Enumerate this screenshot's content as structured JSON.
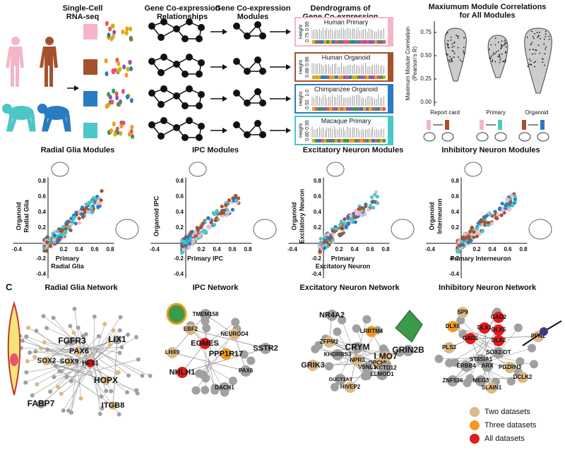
{
  "headers": [
    [
      "Single-Cell",
      "RNA-seq"
    ],
    [
      "Gene Co-expression",
      "Relationships"
    ],
    [
      "Gene Co-expression",
      "Modules"
    ],
    [
      "Dendrograms of",
      "Gene Co-expression"
    ],
    [
      "Maxiumum Module Correlations",
      "for All Modules"
    ]
  ],
  "rows": [
    {
      "label": "Human Primary",
      "color": "#f4b6c6",
      "ticks": [
        "0.75",
        "0.95"
      ]
    },
    {
      "label": "Human Organoid",
      "color": "#a5522c",
      "ticks": [
        "0.88",
        "0.96"
      ]
    },
    {
      "label": "Chimpanzee Organoid",
      "color": "#2a7cc0",
      "ticks": [
        "0.92",
        "1.0"
      ]
    },
    {
      "label": "Macaque Primary",
      "color": "#4cc6c6",
      "ticks": [
        "0.80",
        "0.95"
      ]
    }
  ],
  "height_label": "Height",
  "violin": {
    "ylabel": [
      "Maximum Module Correlation",
      "(Pearson's R)"
    ],
    "yticks": [
      "0.00",
      "0.25",
      "0.50",
      "0.75"
    ],
    "groups": [
      "Report card",
      "Primary",
      "Organoid"
    ]
  },
  "scatter": {
    "xticks": [
      "-0.4",
      "0.2",
      "0.4",
      "0.6",
      "0.8"
    ],
    "yticks": [
      "0.8",
      "0.6",
      "0.4",
      "0.2",
      "-0.2",
      "-0.4"
    ],
    "panels": [
      {
        "title": "Radial Glia Modules",
        "ylabel": [
          "Organoid",
          "Radial Glia"
        ],
        "xlabel": [
          "Primary",
          "Radial Glia"
        ]
      },
      {
        "title": "IPC Modules",
        "ylabel": [
          "Organoid IPC"
        ],
        "xlabel": [
          "Primary IPC"
        ]
      },
      {
        "title": "Excitatory Neuron Modules",
        "ylabel": [
          "Organoid",
          "Excitatory Neuron"
        ],
        "xlabel": [
          "Primary",
          "Excitatory Neuron"
        ]
      },
      {
        "title": "Inhibitory Neuron Modules",
        "ylabel": [
          "Organoid",
          "Interneuron"
        ],
        "xlabel": [
          "Primary Interneuron"
        ]
      }
    ]
  },
  "panel_label": "C",
  "networks": [
    {
      "title": "Radial Glia Network",
      "genes": [
        {
          "label": "FGFR3",
          "color": "#a0a0a0"
        },
        {
          "label": "PAX6",
          "color": "#ddb884"
        },
        {
          "label": "SOX2",
          "color": "#ddb884"
        },
        {
          "label": "SOX9",
          "color": "#ddb884"
        },
        {
          "label": "HES1",
          "color": "#e41a1c"
        },
        {
          "label": "LIX1",
          "color": "#a0a0a0"
        },
        {
          "label": "HOPX",
          "color": "#ddb884"
        },
        {
          "label": "FABP7",
          "color": "#a0a0a0"
        },
        {
          "label": "ITGB8",
          "color": "#ddb884"
        }
      ]
    },
    {
      "title": "IPC Network",
      "genes": [
        {
          "label": "TMEM158",
          "color": "#a0a0a0"
        },
        {
          "label": "EBF2",
          "color": "#ddb884"
        },
        {
          "label": "NEUROD4",
          "color": "#ddb884"
        },
        {
          "label": "EOMES",
          "color": "#e41a1c"
        },
        {
          "label": "PPP1R17",
          "color": "#f39a1e"
        },
        {
          "label": "SSTR2",
          "color": "#a0a0a0"
        },
        {
          "label": "LHX9",
          "color": "#ddb884"
        },
        {
          "label": "NHLH1",
          "color": "#e41a1c"
        },
        {
          "label": "PAX6",
          "color": "#a0a0a0"
        },
        {
          "label": "DACH1",
          "color": "#a0a0a0"
        }
      ]
    },
    {
      "title": "Excitatory Neuron Network",
      "genes": [
        {
          "label": "NR4A2",
          "color": "#a0a0a0"
        },
        {
          "label": "LRRTM4",
          "color": "#f39a1e"
        },
        {
          "label": "ZFPM2",
          "color": "#ddb884"
        },
        {
          "label": "KHDRBS3",
          "color": "#a0a0a0"
        },
        {
          "label": "CRYM",
          "color": "#a0a0a0"
        },
        {
          "label": "LMO7",
          "color": "#ddb884"
        },
        {
          "label": "GRIN2B",
          "color": "#a0a0a0"
        },
        {
          "label": "NPR3",
          "color": "#ddb884"
        },
        {
          "label": "OPCML",
          "color": "#ddb884"
        },
        {
          "label": "VSNL1",
          "color": "#a0a0a0"
        },
        {
          "label": "KCTD12",
          "color": "#a0a0a0"
        },
        {
          "label": "ELMOD1",
          "color": "#a0a0a0"
        },
        {
          "label": "GRIK3",
          "color": "#ddb884"
        },
        {
          "label": "GUCY1A3",
          "color": "#a0a0a0"
        },
        {
          "label": "HIVEP2",
          "color": "#ddb884"
        }
      ]
    },
    {
      "title": "Inhibitory Neuron Network",
      "genes": [
        {
          "label": "SP9",
          "color": "#ddb884"
        },
        {
          "label": "GAD2",
          "color": "#e41a1c"
        },
        {
          "label": "DLX6",
          "color": "#f39a1e"
        },
        {
          "label": "DLX1",
          "color": "#e41a1c"
        },
        {
          "label": "DLX5",
          "color": "#e41a1c"
        },
        {
          "label": "GAD1",
          "color": "#e41a1c"
        },
        {
          "label": "DLX2",
          "color": "#e41a1c"
        },
        {
          "label": "PLS3",
          "color": "#ddb884"
        },
        {
          "label": "SOX2-OT",
          "color": "#a0a0a0"
        },
        {
          "label": "ST8SIA1",
          "color": "#a0a0a0"
        },
        {
          "label": "ERBB4",
          "color": "#a0a0a0"
        },
        {
          "label": "ARX",
          "color": "#a0a0a0"
        },
        {
          "label": "PDZRN3",
          "color": "#ddb884"
        },
        {
          "label": "PFN2",
          "color": "#ddb884"
        },
        {
          "label": "ZNF536",
          "color": "#a0a0a0"
        },
        {
          "label": "MEG3",
          "color": "#a0a0a0"
        },
        {
          "label": "DCLK2",
          "color": "#ddb884"
        },
        {
          "label": "SLAIN1",
          "color": "#ddb884"
        }
      ]
    }
  ],
  "legend": [
    {
      "label": "Two datasets",
      "color": "#ddb884"
    },
    {
      "label": "Three datasets",
      "color": "#f39a1e"
    },
    {
      "label": "All datasets",
      "color": "#e41a1c"
    }
  ]
}
